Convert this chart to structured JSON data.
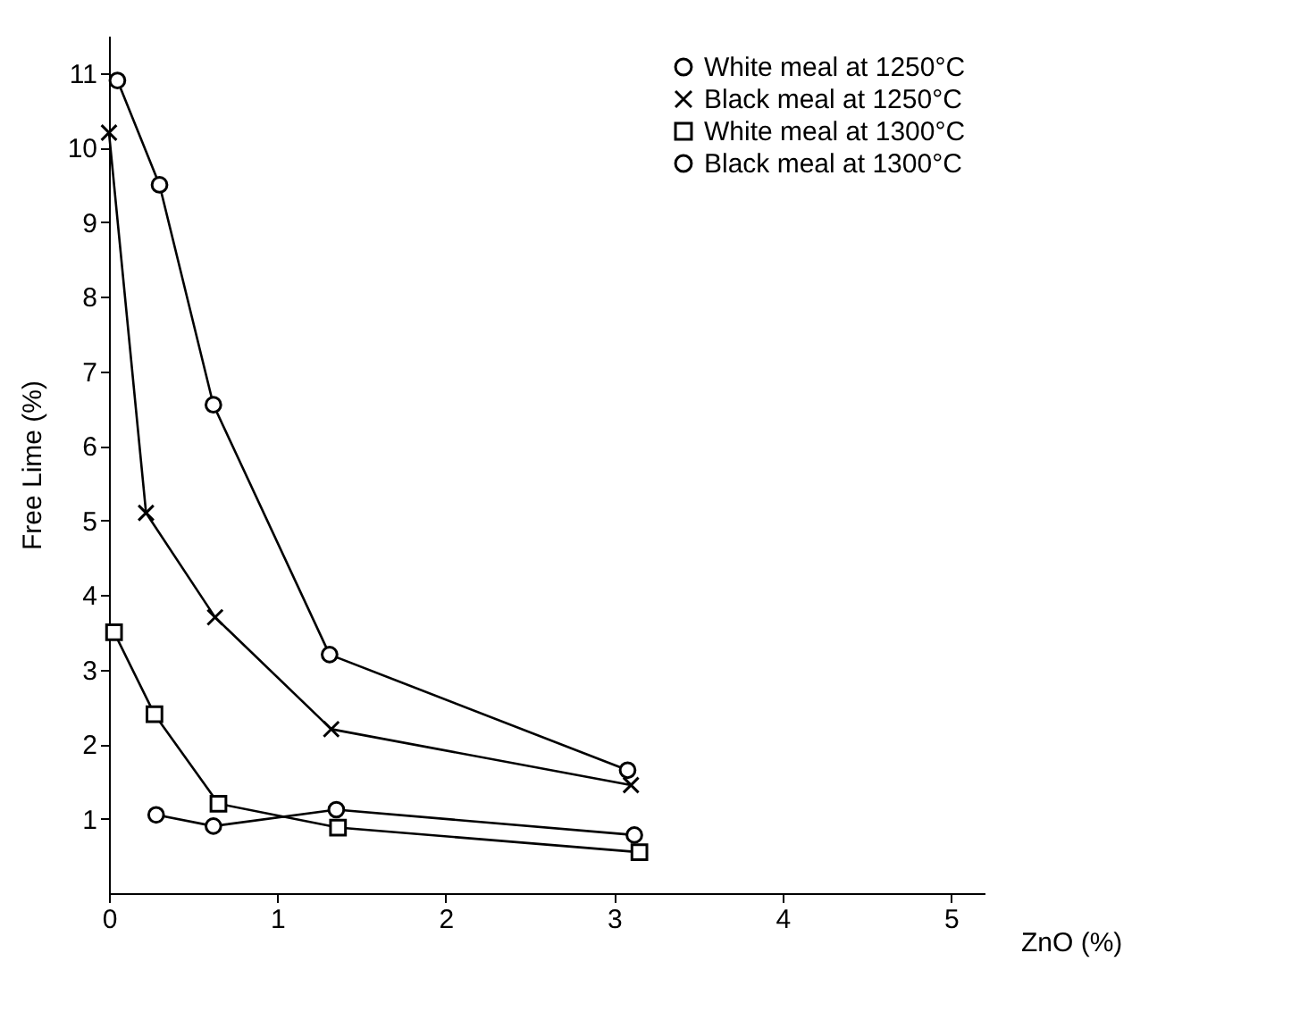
{
  "chart_data": {
    "type": "line",
    "xlabel": "ZnO (%)",
    "ylabel": "Free Lime (%)",
    "xlim": [
      0,
      5.2
    ],
    "ylim": [
      0,
      11.5
    ],
    "xticks": [
      0,
      1,
      2,
      3,
      4,
      5
    ],
    "yticks": [
      1,
      2,
      3,
      4,
      5,
      6,
      7,
      8,
      9,
      10,
      11
    ],
    "grid": false,
    "legend": "top right",
    "series": [
      {
        "name": "White meal at 1250°C",
        "color": "#000000",
        "marker": "circle",
        "x": [
          0.05,
          0.3,
          0.62,
          1.31,
          3.08
        ],
        "values": [
          10.9,
          9.5,
          6.55,
          3.2,
          1.65
        ]
      },
      {
        "name": "Black meal at 1250°C",
        "color": "#000000",
        "marker": "cross",
        "x": [
          0,
          0.22,
          0.63,
          1.32,
          3.1
        ],
        "values": [
          10.2,
          5.1,
          3.7,
          2.2,
          1.45
        ]
      },
      {
        "name": "White meal at 1300°C",
        "color": "#000000",
        "marker": "square",
        "x": [
          0.03,
          0.27,
          0.65,
          1.36,
          3.15
        ],
        "values": [
          3.5,
          2.4,
          1.2,
          0.88,
          0.55
        ]
      },
      {
        "name": "Black meal at 1300°C",
        "color": "#000000",
        "marker": "circle",
        "x": [
          0.28,
          0.62,
          1.35,
          3.12
        ],
        "values": [
          1.05,
          0.9,
          1.12,
          0.78
        ]
      }
    ]
  }
}
